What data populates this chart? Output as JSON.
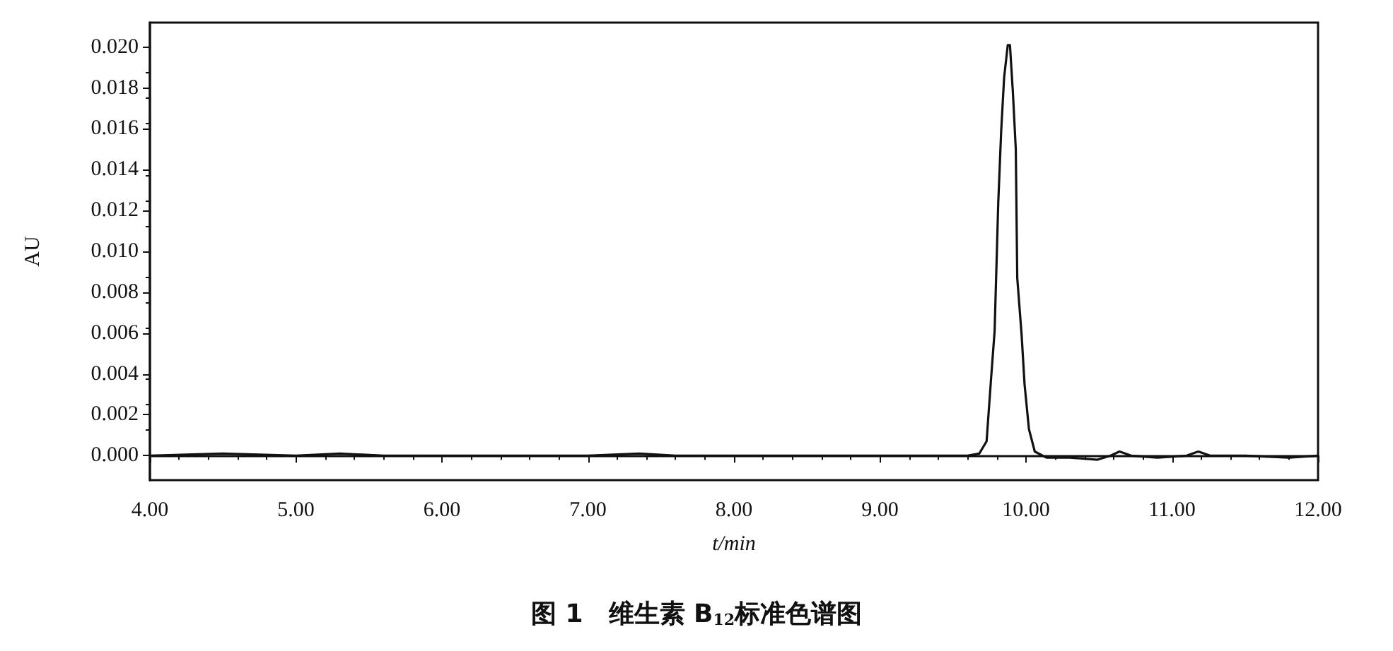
{
  "chart_data": {
    "type": "line",
    "title": "图 1　维生素 B$_{12}$标准色谱图",
    "xlabel": "t/min",
    "ylabel": "AU",
    "xlim": [
      4,
      12
    ],
    "ylim": [
      -0.0012,
      0.0212
    ],
    "xticks": [
      {
        "value": 4,
        "label": "4.00"
      },
      {
        "value": 5,
        "label": "5.00"
      },
      {
        "value": 6,
        "label": "6.00"
      },
      {
        "value": 7,
        "label": "7.00"
      },
      {
        "value": 8,
        "label": "8.00"
      },
      {
        "value": 9,
        "label": "9.00"
      },
      {
        "value": 10,
        "label": "10.00"
      },
      {
        "value": 11,
        "label": "11.00"
      },
      {
        "value": 12,
        "label": "12.00"
      }
    ],
    "yticks": [
      {
        "value": 0,
        "label": "0.000"
      },
      {
        "value": 0.002,
        "label": "0.002"
      },
      {
        "value": 0.004,
        "label": "0.004"
      },
      {
        "value": 0.006,
        "label": "0.006"
      },
      {
        "value": 0.008,
        "label": "0.008"
      },
      {
        "value": 0.01,
        "label": "0.010"
      },
      {
        "value": 0.012,
        "label": "0.012"
      },
      {
        "value": 0.014,
        "label": "0.014"
      },
      {
        "value": 0.016,
        "label": "0.016"
      },
      {
        "value": 0.018,
        "label": "0.018"
      },
      {
        "value": 0.02,
        "label": "0.020"
      }
    ],
    "marker": "none",
    "series": [
      {
        "color": "#111111",
        "x": [
          4,
          4.5,
          5,
          5.3,
          5.6,
          6,
          6.5,
          7,
          7.35,
          7.6,
          8,
          8.4,
          8.8,
          9,
          9.3,
          9.5,
          9.6,
          9.68,
          9.73,
          9.76,
          9.785,
          9.81,
          9.83,
          9.85,
          9.875,
          9.89,
          9.91,
          9.93,
          9.94,
          9.97,
          9.99,
          10.02,
          10.06,
          10.14,
          10.3,
          10.49,
          10.58,
          10.64,
          10.72,
          10.9,
          11.1,
          11.18,
          11.26,
          11.5,
          11.8,
          12
        ],
        "values": [
          0,
          0.0001,
          0,
          0.0001,
          0,
          0,
          0,
          0,
          0.0001,
          0,
          0,
          0,
          0,
          0,
          0,
          0,
          0,
          0.0001,
          0.0007,
          0.0037,
          0.0061,
          0.0124,
          0.0159,
          0.0185,
          0.0201,
          0.0201,
          0.0178,
          0.015,
          0.0087,
          0.0059,
          0.0035,
          0.0013,
          0.0002,
          -0.0001,
          -0.0001,
          -0.0002,
          0,
          0.0002,
          0,
          -0.0001,
          0,
          0.0002,
          0,
          0,
          -0.0001,
          0
        ]
      }
    ]
  }
}
